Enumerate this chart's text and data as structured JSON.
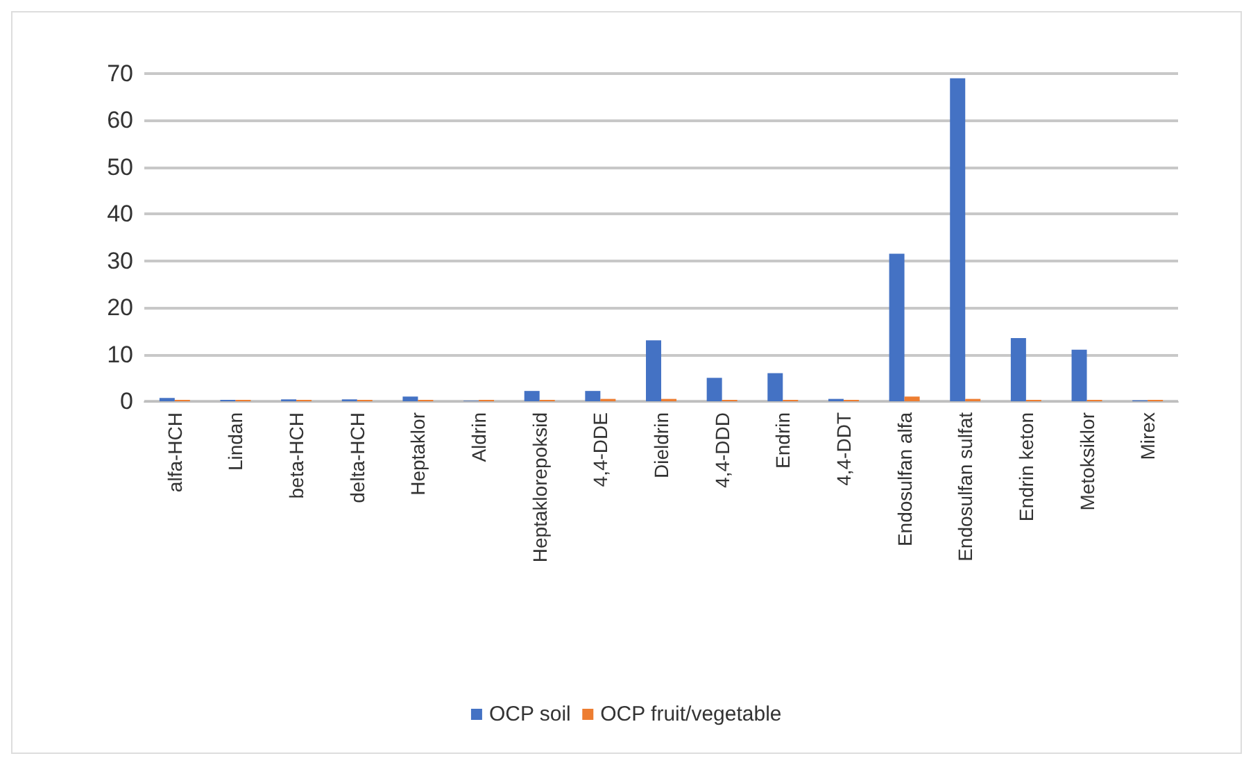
{
  "chart_data": {
    "type": "bar",
    "categories": [
      "alfa-HCH",
      "Lindan",
      "beta-HCH",
      "delta-HCH",
      "Heptaklor",
      "Aldrin",
      "Heptaklorepoksid",
      "4,4-DDE",
      "Dieldrin",
      "4,4-DDD",
      "Endrin",
      "4,4-DDT",
      "Endosulfan alfa",
      "Endosulfan sulfat",
      "Endrin keton",
      "Metoksiklor",
      "Mirex"
    ],
    "series": [
      {
        "name": "OCP soil",
        "color": "#4472c4",
        "values": [
          0.7,
          0.3,
          0.4,
          0.4,
          1,
          0.1,
          2.2,
          2.2,
          13,
          5,
          6,
          0.5,
          31.5,
          69,
          13.5,
          11,
          0.2
        ]
      },
      {
        "name": "OCP fruit/vegetable",
        "color": "#ed7d31",
        "values": [
          0.3,
          0.3,
          0.3,
          0.3,
          0.3,
          0.3,
          0.3,
          0.5,
          0.5,
          0.3,
          0.3,
          0.3,
          1,
          0.5,
          0.3,
          0.3,
          0.3
        ]
      }
    ],
    "ylim": [
      0,
      70
    ],
    "yticks": [
      0,
      10,
      20,
      30,
      40,
      50,
      60,
      70
    ],
    "grid": "y",
    "legend": "bottom"
  }
}
